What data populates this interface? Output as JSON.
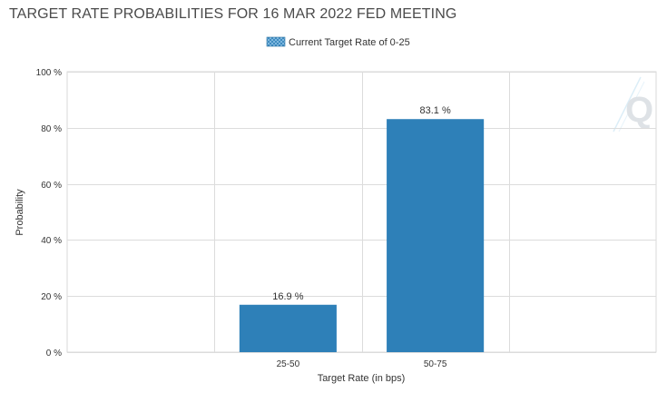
{
  "title": "TARGET RATE PROBABILITIES FOR 16 MAR 2022 FED MEETING",
  "chart_data": {
    "type": "bar",
    "categories": [
      "25-50",
      "50-75"
    ],
    "series": [
      {
        "name": "Current Target Rate of 0-25",
        "values": [
          16.9,
          83.1
        ]
      }
    ],
    "data_labels": [
      "16.9 %",
      "83.1 %"
    ],
    "xlabel": "Target Rate (in bps)",
    "ylabel": "Probability",
    "ylim": [
      0,
      100
    ],
    "yticks": [
      0,
      20,
      40,
      60,
      80,
      100
    ],
    "ytick_labels": [
      "0 %",
      "20 %",
      "40 %",
      "60 %",
      "80 %",
      "100 %"
    ],
    "grid": true,
    "legend_position": "top-center",
    "bar_color": "#2e80b8"
  },
  "watermark": {
    "text": "Q"
  }
}
